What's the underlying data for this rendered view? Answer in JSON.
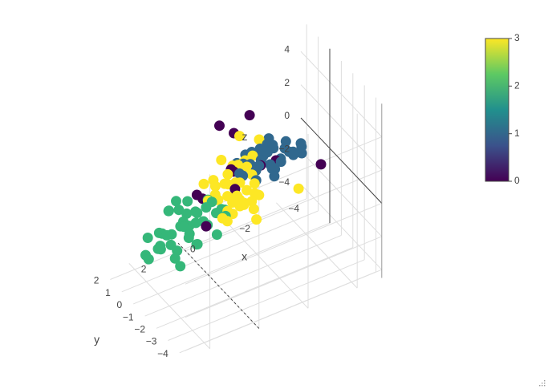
{
  "chart_data": {
    "type": "scatter3d",
    "axes": {
      "x": {
        "label": "x",
        "ticks": [
          "−4",
          "−2",
          "0",
          "2"
        ],
        "range": [
          -5,
          3
        ]
      },
      "y": {
        "label": "y",
        "ticks": [
          "−4",
          "−3",
          "−2",
          "−1",
          "0",
          "1",
          "2"
        ],
        "range": [
          -4.5,
          2.5
        ]
      },
      "z": {
        "label": "z",
        "ticks": [
          "−4",
          "−2",
          "0",
          "2",
          "4"
        ],
        "range": [
          -4.5,
          6
        ]
      }
    },
    "grid": true,
    "colorscale": {
      "name": "Viridis",
      "min": 0,
      "max": 3,
      "ticks": [
        "0",
        "1",
        "2",
        "3"
      ],
      "stops": [
        "#440154",
        "#3b528b",
        "#21908d",
        "#5dc963",
        "#fde725"
      ]
    },
    "legend_placement": "right",
    "clusters": [
      {
        "class": 0,
        "color": "#440154",
        "points": [
          [
            -1.5,
            -0.5,
            4.5
          ],
          [
            -1.0,
            -0.2,
            3.5
          ],
          [
            -0.6,
            0.2,
            3.9
          ],
          [
            -0.6,
            -0.8,
            2.0
          ],
          [
            -1.9,
            -0.6,
            1.3
          ],
          [
            -1.0,
            -0.3,
            0.2
          ],
          [
            -0.2,
            0.8,
            -0.7
          ],
          [
            0.6,
            -1.2,
            -0.4
          ],
          [
            -3.0,
            0.4,
            0.2
          ],
          [
            0.6,
            -0.4,
            0.9
          ],
          [
            -0.8,
            -0.6,
            1.6
          ],
          [
            -3.7,
            -2.0,
            1.3
          ]
        ]
      },
      {
        "class": 1,
        "color": "#31688e",
        "points": [
          [
            -2.7,
            0.5,
            0.8
          ],
          [
            -3.5,
            0.7,
            0.4
          ],
          [
            -4.2,
            0.8,
            0.2
          ],
          [
            -3.0,
            0.0,
            0.6
          ],
          [
            -2.2,
            0.0,
            1.0
          ],
          [
            -2.4,
            0.6,
            0.1
          ],
          [
            -3.2,
            0.4,
            0.0
          ],
          [
            -2.0,
            0.5,
            0.5
          ],
          [
            -2.8,
            0.2,
            1.2
          ],
          [
            -1.9,
            -0.2,
            0.7
          ],
          [
            -3.6,
            0.2,
            0.5
          ],
          [
            -2.6,
            0.9,
            0.4
          ],
          [
            -1.6,
            0.3,
            0.2
          ],
          [
            -4.0,
            0.3,
            0.1
          ],
          [
            -2.9,
            0.7,
            -0.2
          ],
          [
            -2.3,
            0.3,
            1.4
          ],
          [
            -1.7,
            0.8,
            -0.1
          ],
          [
            -3.3,
            -0.1,
            0.9
          ],
          [
            -2.1,
            -0.4,
            1.6
          ],
          [
            -2.5,
            -0.5,
            0.7
          ],
          [
            -3.8,
            0.6,
            -0.1
          ],
          [
            -1.8,
            0.5,
            1.2
          ],
          [
            -2.7,
            0.1,
            0.1
          ],
          [
            -3.1,
            0.9,
            0.7
          ],
          [
            -2.0,
            0.0,
            -0.1
          ],
          [
            -3.4,
            0.4,
            1.1
          ],
          [
            -2.2,
            0.8,
            0.9
          ],
          [
            -2.6,
            -0.3,
            0.0
          ],
          [
            -1.5,
            0.6,
            0.8
          ],
          [
            -3.9,
            0.1,
            0.7
          ],
          [
            -2.8,
            0.6,
            1.5
          ],
          [
            -2.4,
            -0.1,
            1.9
          ],
          [
            -1.9,
            0.9,
            0.3
          ],
          [
            -3.0,
            0.5,
            -0.4
          ]
        ]
      },
      {
        "class": 2,
        "color": "#35b779",
        "points": [
          [
            0.0,
            1.0,
            -1.5
          ],
          [
            0.4,
            1.2,
            -2.0
          ],
          [
            0.8,
            0.6,
            -1.6
          ],
          [
            -0.4,
            0.8,
            -2.4
          ],
          [
            0.2,
            1.5,
            -2.6
          ],
          [
            1.0,
            1.0,
            -2.9
          ],
          [
            -0.6,
            1.2,
            -1.3
          ],
          [
            0.6,
            0.3,
            -2.2
          ],
          [
            1.4,
            0.9,
            -1.9
          ],
          [
            -0.2,
            0.5,
            -1.0
          ],
          [
            0.3,
            1.8,
            -1.8
          ],
          [
            1.2,
            1.5,
            -3.2
          ],
          [
            -0.8,
            0.9,
            -2.0
          ],
          [
            0.9,
            0.1,
            -1.2
          ],
          [
            0.1,
            1.3,
            -3.0
          ],
          [
            1.6,
            0.6,
            -2.5
          ],
          [
            -0.3,
            1.6,
            -2.8
          ],
          [
            0.7,
            1.1,
            -3.5
          ],
          [
            -1.0,
            0.6,
            -1.7
          ],
          [
            0.5,
            0.7,
            -1.1
          ],
          [
            1.8,
            1.3,
            -2.2
          ],
          [
            -0.5,
            0.2,
            -2.6
          ],
          [
            1.1,
            1.8,
            -2.7
          ],
          [
            0.0,
            0.9,
            -3.4
          ],
          [
            0.4,
            0.0,
            -0.6
          ],
          [
            -0.2,
            0.0,
            -0.3
          ],
          [
            1.5,
            0.3,
            -1.5
          ],
          [
            0.8,
            1.6,
            -1.4
          ],
          [
            -0.7,
            1.8,
            -3.1
          ],
          [
            1.3,
            0.0,
            -2.8
          ],
          [
            0.2,
            0.4,
            -2.9
          ],
          [
            2.0,
            0.8,
            -3.0
          ],
          [
            -1.2,
            1.3,
            -2.3
          ],
          [
            0.6,
            1.4,
            -0.8
          ],
          [
            1.7,
            1.7,
            -3.6
          ],
          [
            0.9,
            0.4,
            -3.8
          ],
          [
            -0.1,
            1.9,
            -1.6
          ],
          [
            1.0,
            1.2,
            -1.0
          ],
          [
            0.3,
            0.9,
            -2.1
          ],
          [
            -0.9,
            0.3,
            -1.8
          ],
          [
            1.9,
            0.2,
            -2.0
          ],
          [
            0.5,
            2.0,
            -3.3
          ]
        ]
      },
      {
        "class": 3,
        "color": "#fde725",
        "points": [
          [
            -0.4,
            -2.0,
            2.2
          ],
          [
            -0.2,
            -2.4,
            1.6
          ],
          [
            0.0,
            -1.8,
            2.8
          ],
          [
            -0.6,
            -2.6,
            1.4
          ],
          [
            0.2,
            -2.2,
            1.9
          ],
          [
            -0.8,
            -1.6,
            3.0
          ],
          [
            0.4,
            -2.6,
            1.2
          ],
          [
            -0.3,
            -2.8,
            2.4
          ],
          [
            0.1,
            -2.0,
            0.8
          ],
          [
            -0.5,
            -1.4,
            1.7
          ],
          [
            0.6,
            -2.0,
            2.6
          ],
          [
            -0.9,
            -2.2,
            2.0
          ],
          [
            0.3,
            -1.6,
            1.3
          ],
          [
            -0.1,
            -3.0,
            1.9
          ],
          [
            -0.7,
            -2.4,
            2.8
          ],
          [
            0.5,
            -2.4,
            0.9
          ],
          [
            -0.2,
            -1.8,
            3.2
          ],
          [
            0.0,
            -2.6,
            2.1
          ],
          [
            -0.4,
            -3.2,
            1.5
          ],
          [
            0.8,
            -1.8,
            1.7
          ],
          [
            -1.0,
            -2.0,
            1.2
          ],
          [
            0.2,
            -2.8,
            2.9
          ],
          [
            -0.6,
            -1.8,
            0.7
          ],
          [
            0.4,
            -1.4,
            2.4
          ],
          [
            -0.3,
            -2.2,
            1.0
          ],
          [
            -0.8,
            -2.8,
            1.8
          ],
          [
            0.7,
            -2.2,
            2.3
          ],
          [
            -0.1,
            -1.6,
            2.0
          ],
          [
            0.1,
            -3.4,
            2.2
          ],
          [
            -0.5,
            -2.0,
            3.3
          ],
          [
            0.3,
            -2.4,
            0.6
          ],
          [
            -0.7,
            -1.2,
            2.5
          ],
          [
            0.0,
            -2.2,
            1.4
          ],
          [
            -0.4,
            -2.6,
            3.6
          ],
          [
            -1.2,
            -1.4,
            2.9
          ],
          [
            -0.9,
            -0.9,
            3.9
          ],
          [
            -1.7,
            -0.9,
            3.2
          ],
          [
            -0.3,
            -0.6,
            2.6
          ],
          [
            -0.2,
            -1.8,
            0.3
          ],
          [
            -2.6,
            -2.4,
            0.8
          ],
          [
            -0.6,
            -3.0,
            0.6
          ],
          [
            0.5,
            -2.9,
            1.5
          ],
          [
            -0.2,
            -1.1,
            1.6
          ],
          [
            0.6,
            -1.0,
            2.0
          ]
        ]
      }
    ]
  },
  "ui": {
    "resize_icon": "resize-grip-icon"
  }
}
